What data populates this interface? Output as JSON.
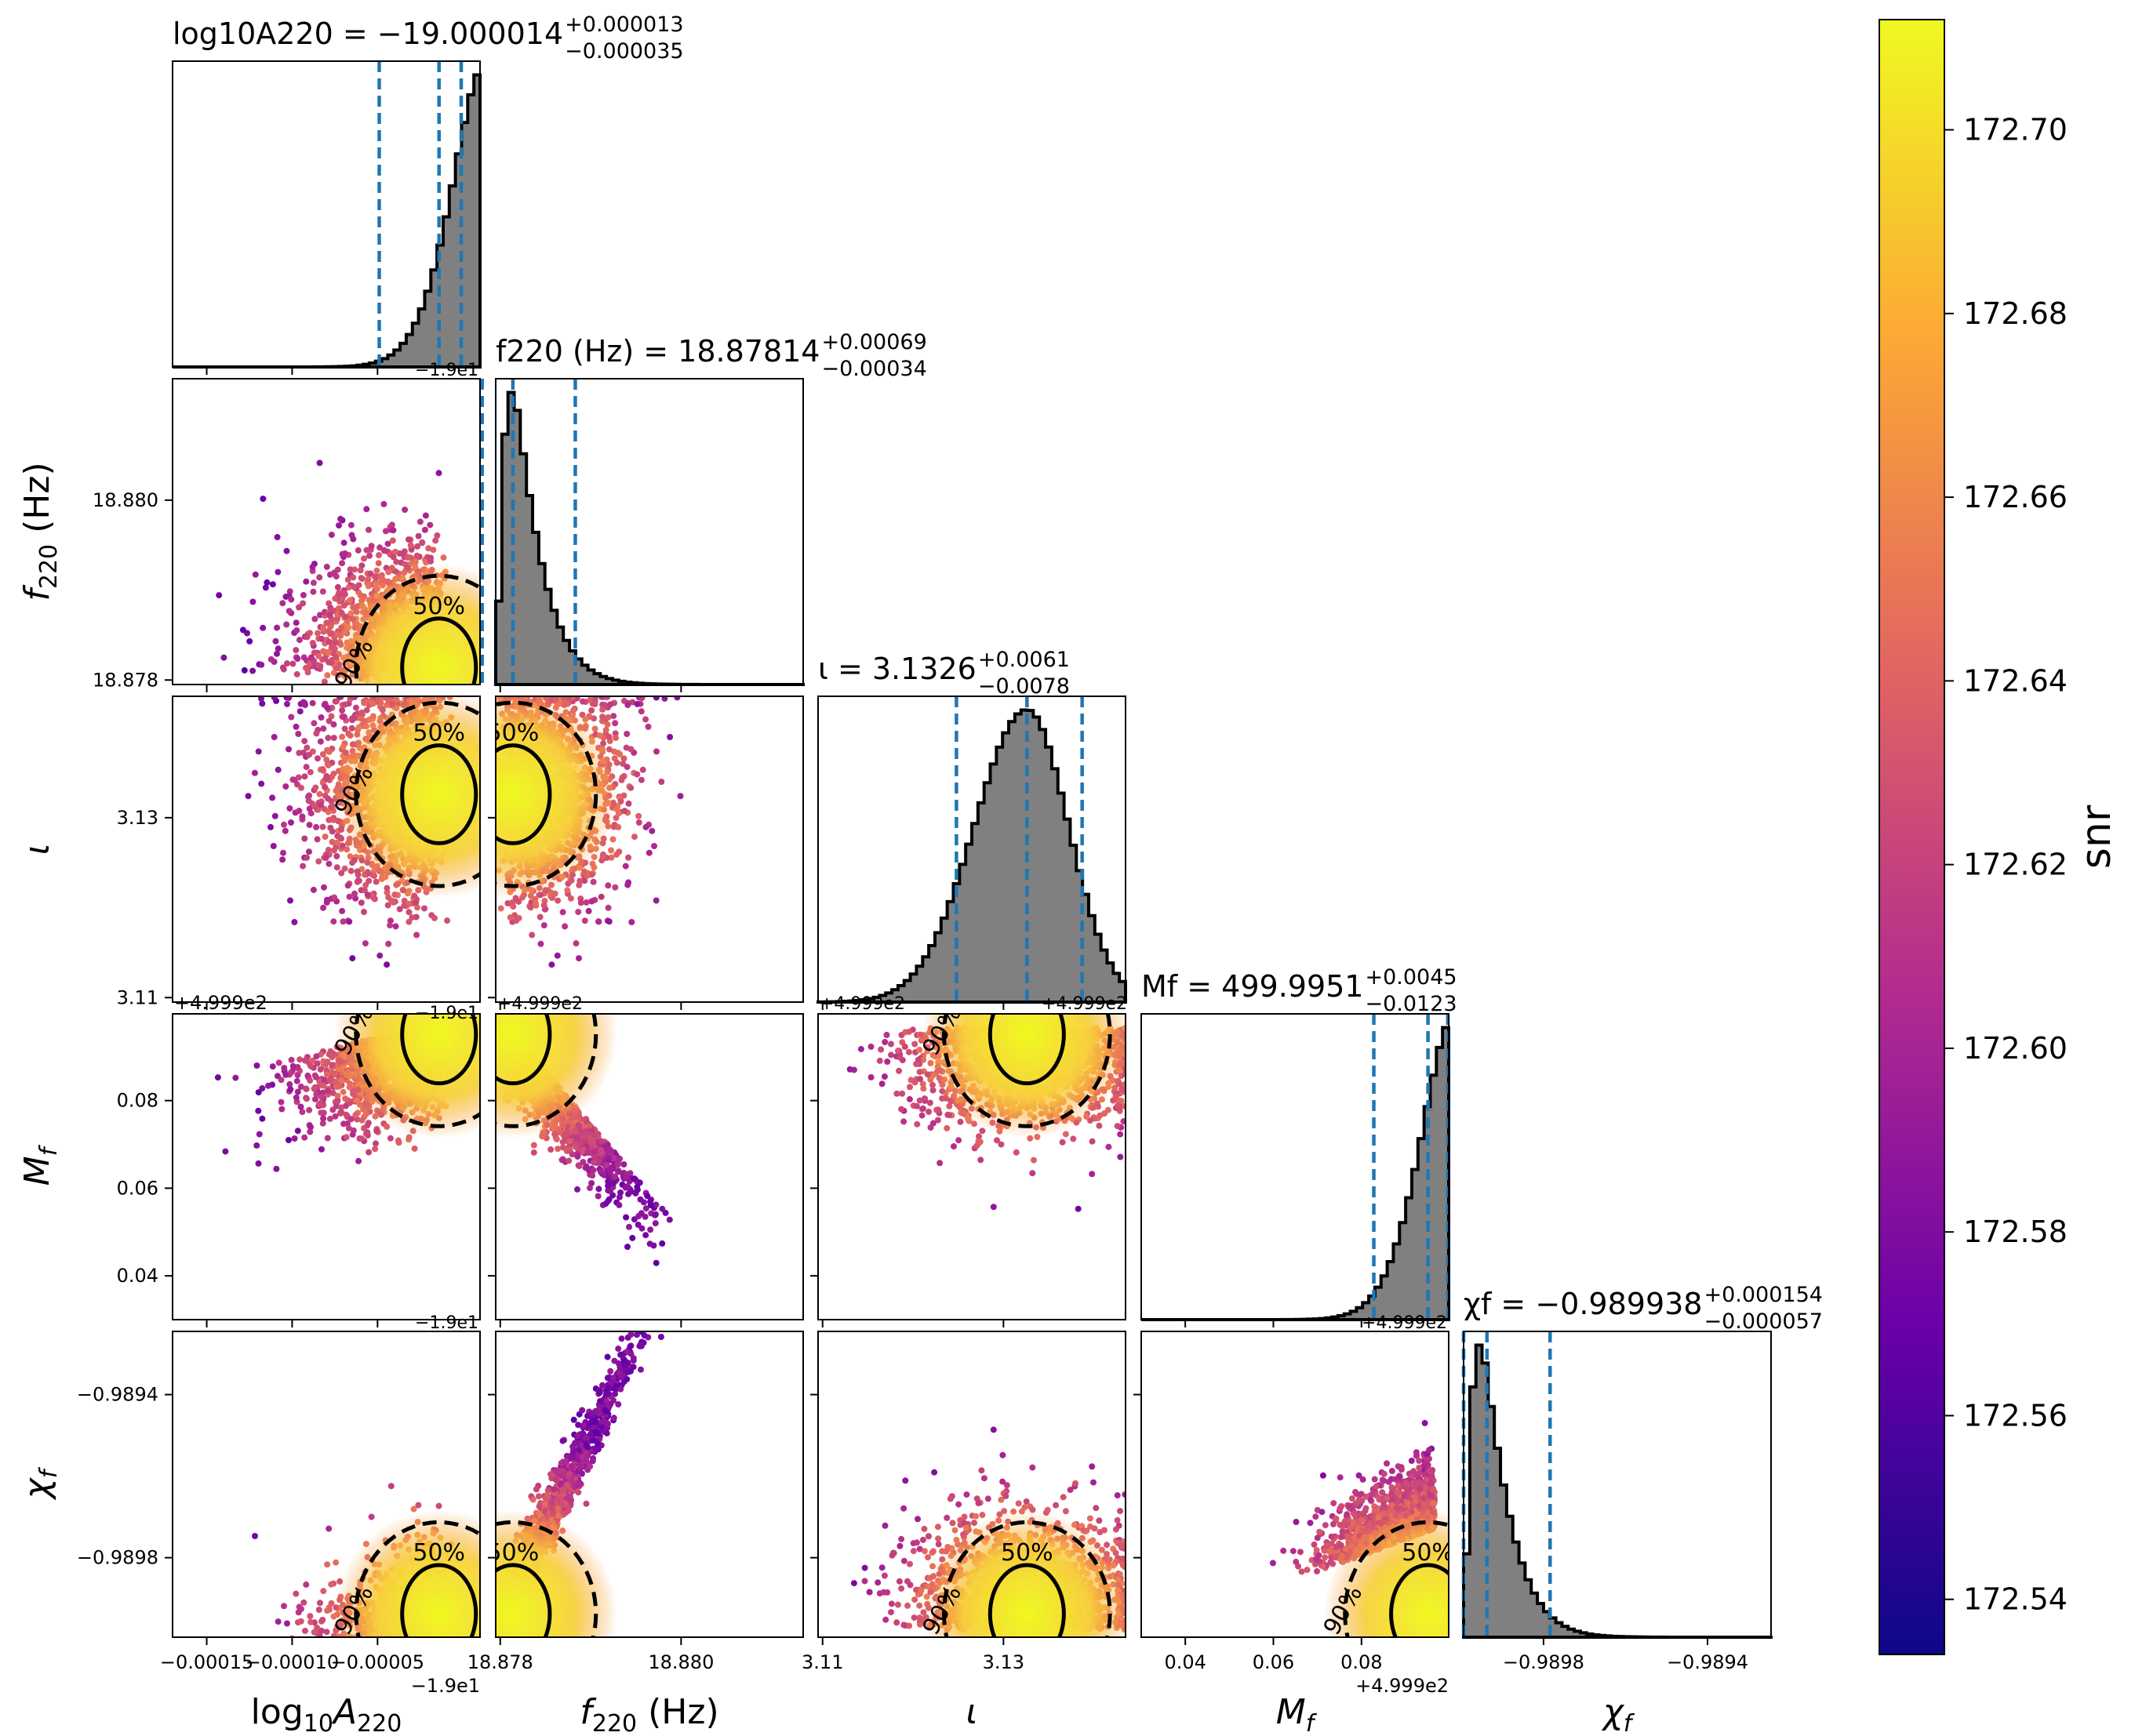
{
  "colors": {
    "scatter_cmap": [
      "#0d0887",
      "#6a00a8",
      "#b12a90",
      "#e16462",
      "#fca636",
      "#f0f921"
    ],
    "hist_fill": "#808080",
    "quantile_line": "#1f77b4",
    "contour": "#000000"
  },
  "chart_data": {
    "type": "corner",
    "params": [
      {
        "key": "logA",
        "label": "log10A220",
        "title": "log10A220 = -19.000014 +0.000013 -0.000035",
        "median": -19.000014,
        "plus": 1.3e-05,
        "minus": 3.5e-05,
        "range": [
          -19.00017,
          -18.99999
        ],
        "offset_label": "-1.9e1",
        "ticks": [
          {
            "v": -19.00015,
            "label": "-0.00015"
          },
          {
            "v": -19.0001,
            "label": "-0.00010"
          },
          {
            "v": -19.00005,
            "label": "-0.00005"
          }
        ],
        "hist_shape": "right_peak",
        "quantiles": [
          -19.000049,
          -19.000014,
          -19.000001
        ]
      },
      {
        "key": "f220",
        "label": "f220 (Hz)",
        "title": "f220 (Hz) = 18.87814 +0.00069 -0.00034",
        "median": 18.87814,
        "plus": 0.00069,
        "minus": 0.00034,
        "range": [
          18.87795,
          18.88135
        ],
        "offset_label": "",
        "ticks": [
          {
            "v": 18.878,
            "label": "18.878"
          },
          {
            "v": 18.88,
            "label": "18.880"
          }
        ],
        "hist_shape": "left_peak",
        "quantiles": [
          18.8778,
          18.87814,
          18.87883
        ]
      },
      {
        "key": "iota",
        "label": "ι",
        "title": "ι = 3.1326 +0.0061 -0.0078",
        "median": 3.1326,
        "plus": 0.0061,
        "minus": 0.0078,
        "range": [
          3.1095,
          3.1435
        ],
        "offset_label": "",
        "ticks": [
          {
            "v": 3.11,
            "label": "3.11"
          },
          {
            "v": 3.13,
            "label": "3.13"
          }
        ],
        "hist_shape": "center_peak",
        "quantiles": [
          3.1248,
          3.1326,
          3.1387
        ]
      },
      {
        "key": "Mf",
        "label": "Mf",
        "title": "Mf = 499.9951 +0.0045 -0.0123",
        "median": 499.9951,
        "plus": 0.0045,
        "minus": 0.0123,
        "range": [
          499.93,
          499.9998
        ],
        "offset_label": "+4.999e2",
        "ticks": [
          {
            "v": 499.94,
            "label": "0.04"
          },
          {
            "v": 499.96,
            "label": "0.06"
          },
          {
            "v": 499.98,
            "label": "0.08"
          }
        ],
        "hist_shape": "right_peak",
        "quantiles": [
          499.9828,
          499.9951,
          499.9996
        ]
      },
      {
        "key": "chif",
        "label": "χf",
        "title": "χf = -0.989938 +0.000154 -0.000057",
        "median": -0.989938,
        "plus": 0.000154,
        "minus": 5.7e-05,
        "range": [
          -0.989995,
          -0.989245
        ],
        "offset_label": "",
        "ticks": [
          {
            "v": -0.9898,
            "label": "-0.9898"
          },
          {
            "v": -0.9894,
            "label": "-0.9894"
          }
        ],
        "hist_shape": "left_peak",
        "quantiles": [
          -0.989995,
          -0.989938,
          -0.989784
        ]
      }
    ],
    "axis_labels": {
      "x": [
        "log10A220",
        "f220 (Hz)",
        "ι",
        "Mf",
        "χf"
      ],
      "y": [
        "f220 (Hz)",
        "ι",
        "Mf",
        "χf"
      ],
      "x_offsets": [
        "-1.9e1",
        "",
        "",
        "+4.999e2",
        ""
      ],
      "y_offsets": [
        "",
        "",
        "+4.999e2",
        ""
      ]
    },
    "y_ticks": [
      [
        {
          "v": 18.88,
          "label": "18.880"
        },
        {
          "v": 18.878,
          "label": "18.878"
        }
      ],
      [
        {
          "v": 3.13,
          "label": "3.13"
        },
        {
          "v": 3.11,
          "label": "3.11"
        }
      ],
      [
        {
          "v": 499.98,
          "label": "0.08"
        },
        {
          "v": 499.96,
          "label": "0.06"
        },
        {
          "v": 499.94,
          "label": "0.04"
        }
      ],
      [
        {
          "v": -0.9894,
          "label": "-0.9894"
        },
        {
          "v": -0.9898,
          "label": "-0.9898"
        }
      ]
    ],
    "stray_offset_labels": [
      "-1.9e1",
      "-1.9e1",
      "+4.999e2",
      "+4.999e2",
      "+4.999e2",
      "-1.9e1",
      "+4.999e2"
    ],
    "contour_labels": [
      "50%",
      "90%"
    ],
    "colorbar": {
      "label": "snr",
      "min": 172.534,
      "max": 172.712,
      "ticks": [
        172.54,
        172.56,
        172.58,
        172.6,
        172.62,
        172.64,
        172.66,
        172.68,
        172.7
      ]
    }
  }
}
